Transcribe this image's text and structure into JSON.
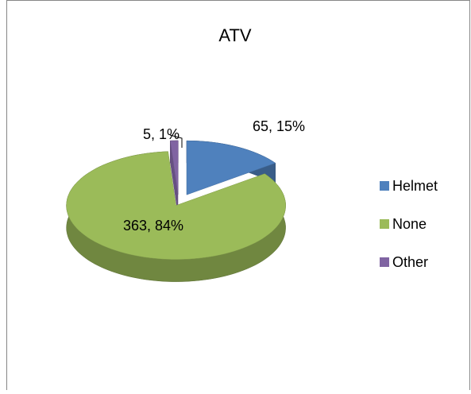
{
  "chart_data": {
    "type": "pie3d",
    "title": "ATV",
    "categories": [
      "Helmet",
      "None",
      "Other"
    ],
    "values": [
      65,
      363,
      5
    ],
    "value_labels": [
      "65, 15%",
      "363, 84%",
      "5, 1%"
    ],
    "colors": [
      "#4f81bd",
      "#9bbb59",
      "#8064a2"
    ],
    "legend": "right"
  }
}
